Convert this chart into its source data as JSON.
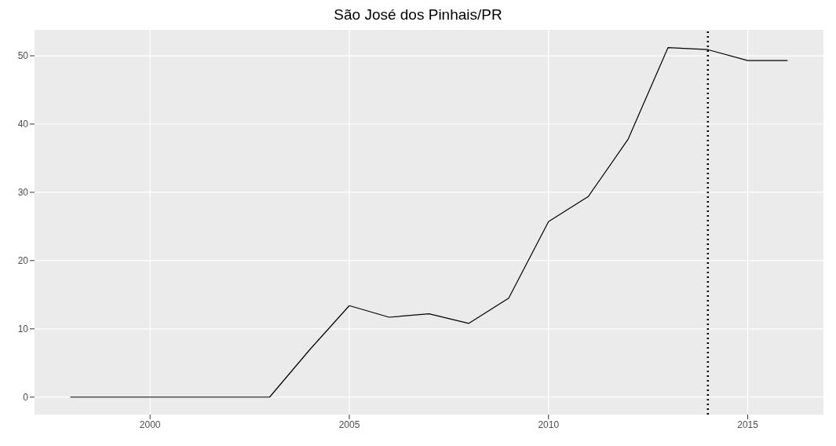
{
  "chart_data": {
    "type": "line",
    "title": "São José dos Pinhais/PR",
    "x": [
      1998,
      1999,
      2000,
      2001,
      2002,
      2003,
      2004,
      2005,
      2006,
      2007,
      2008,
      2009,
      2010,
      2011,
      2012,
      2013,
      2014,
      2015,
      2016
    ],
    "series": [
      {
        "color": "#000000",
        "values": [
          0,
          0,
          0,
          0,
          0,
          0,
          6.9,
          13.4,
          11.7,
          12.2,
          10.8,
          14.5,
          25.7,
          29.4,
          37.8,
          51.2,
          50.9,
          49.3,
          49.3
        ]
      }
    ],
    "xlim": [
      1997.1,
      2016.9
    ],
    "xticks": [
      2000,
      2005,
      2010,
      2015
    ],
    "ylim": [
      -2.56,
      53.8
    ],
    "yticks": [
      0,
      10,
      20,
      30,
      40,
      50
    ],
    "ref_lines": [
      {
        "axis": "x",
        "value": 2014,
        "color": "#000000",
        "line_style": "dotted"
      }
    ],
    "grid": true,
    "marker": "none",
    "line_style": "solid"
  }
}
